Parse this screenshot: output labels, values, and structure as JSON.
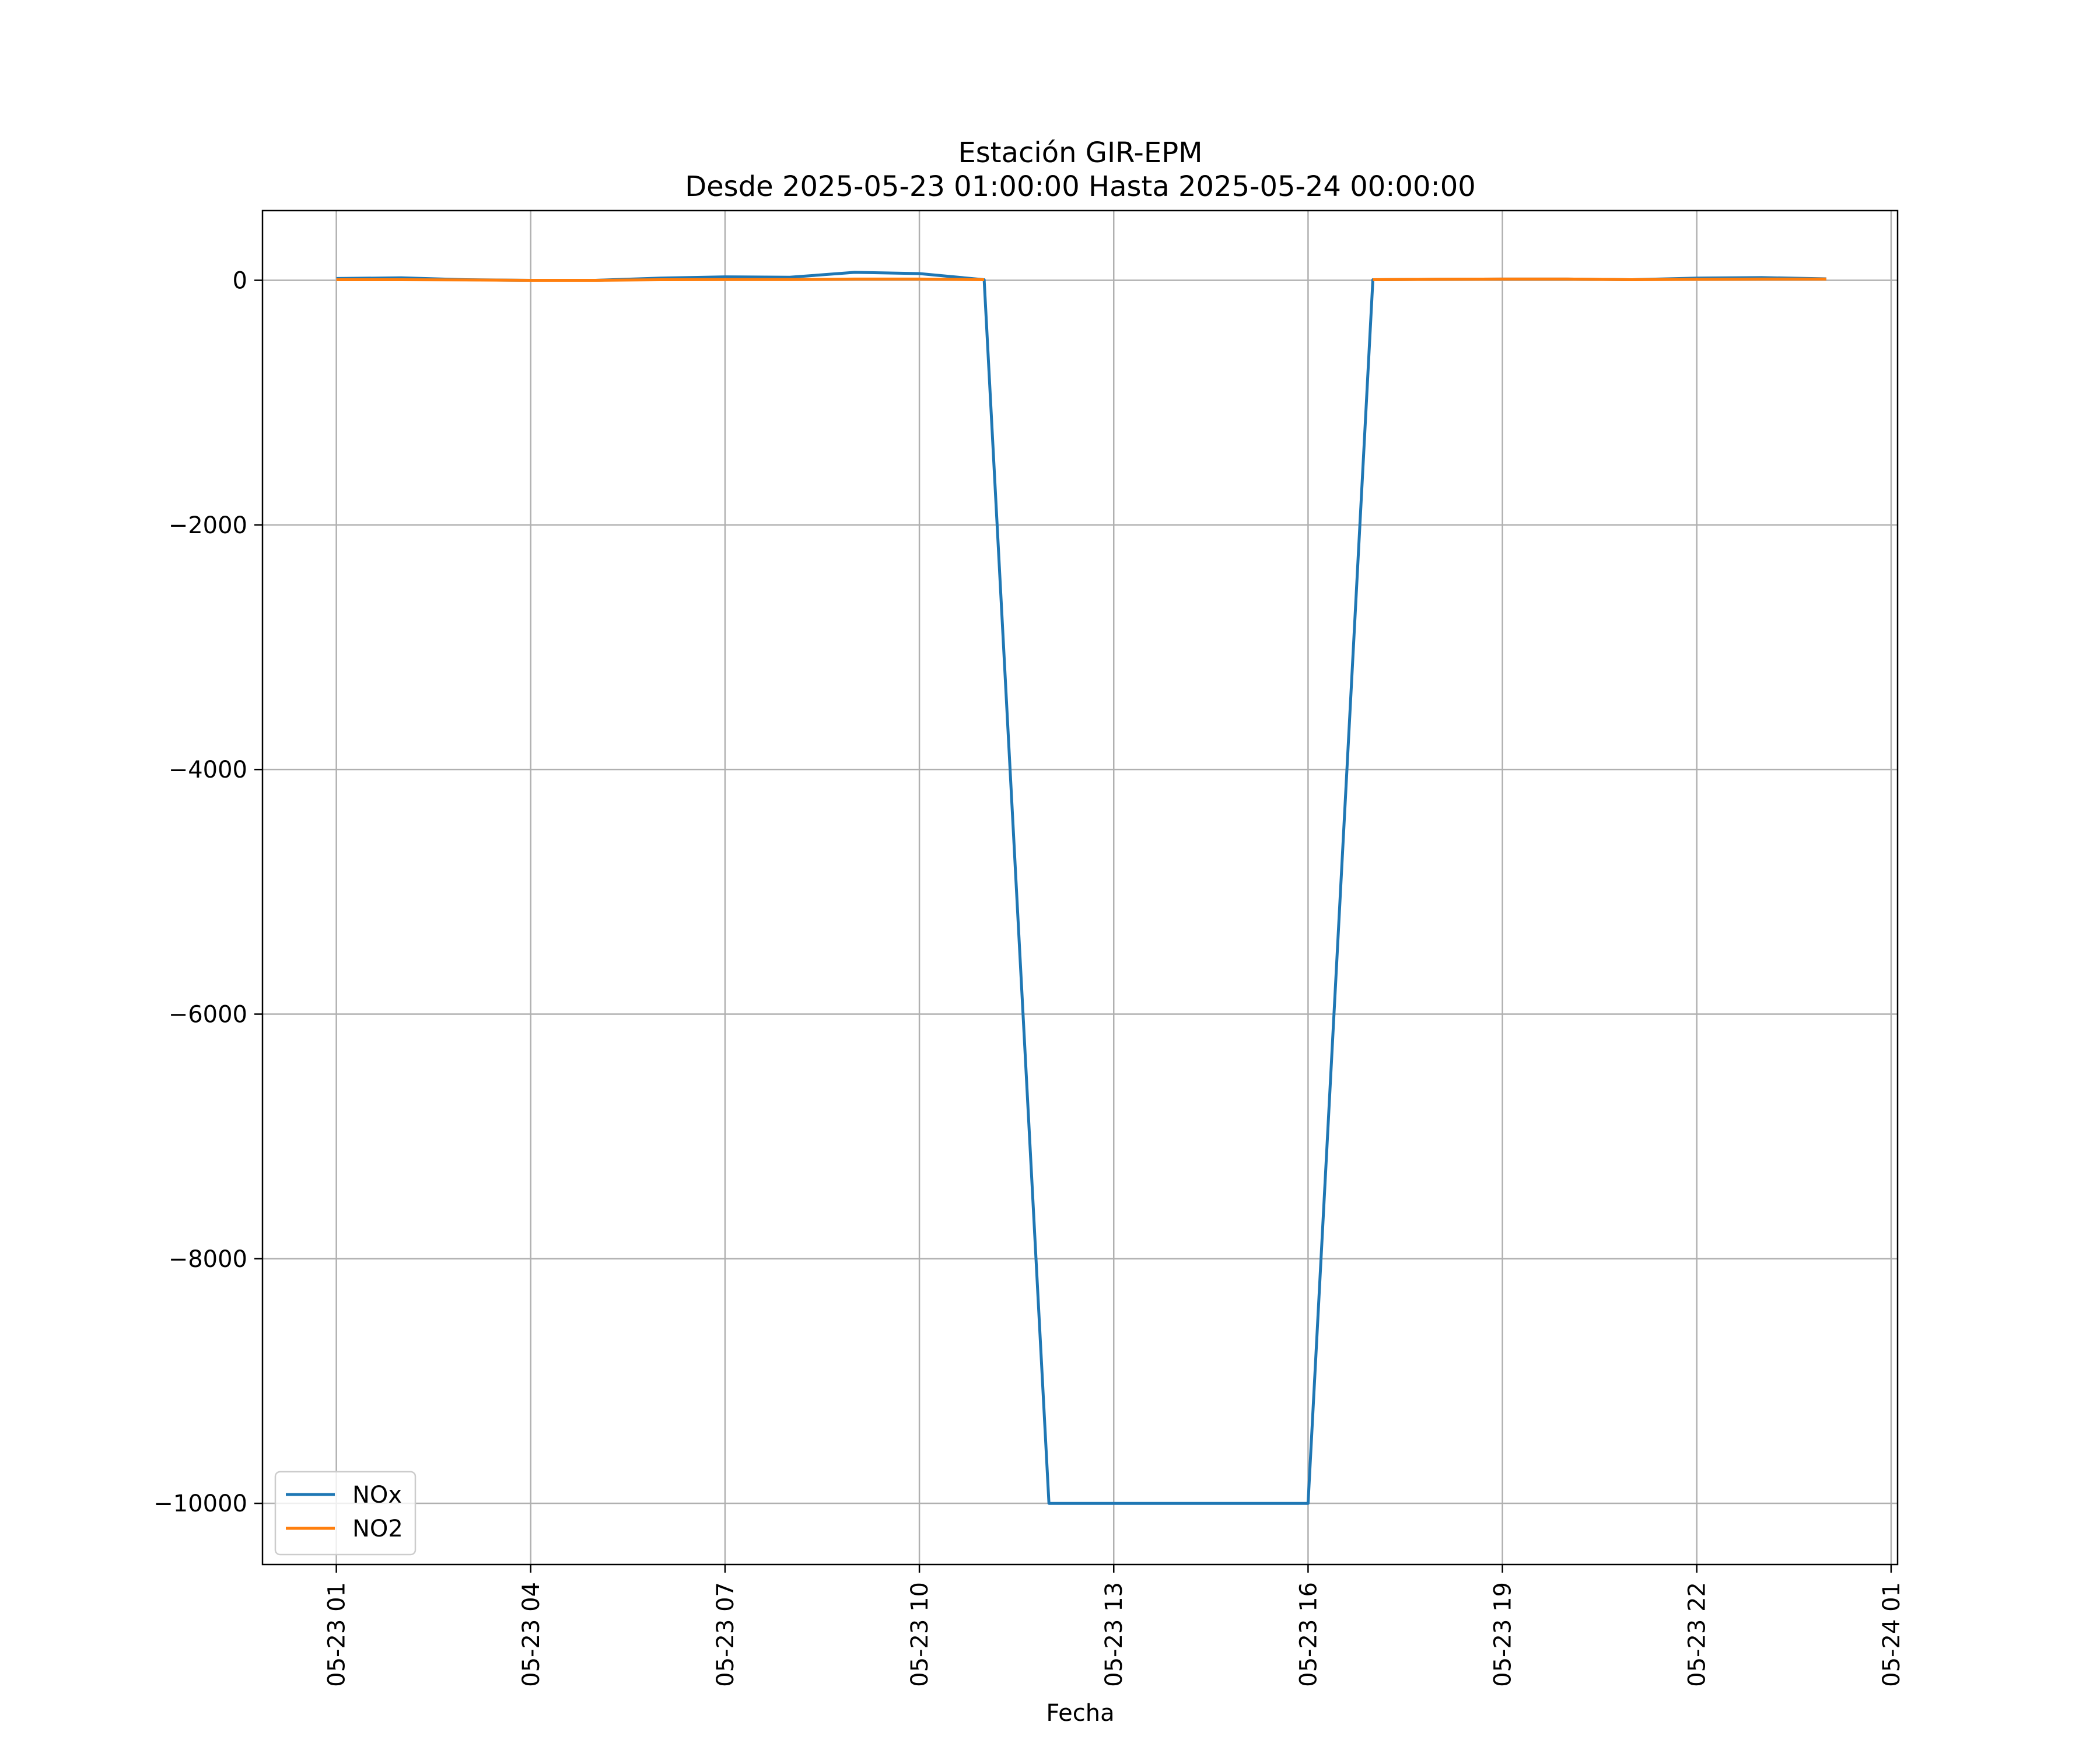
{
  "chart_data": {
    "type": "line",
    "title": "Estación GIR-EPM",
    "subtitle": "Desde 2025-05-23 01:00:00 Hasta 2025-05-24 00:00:00",
    "xlabel": "Fecha",
    "ylabel": "",
    "x": [
      "2025-05-23 01:00",
      "2025-05-23 02:00",
      "2025-05-23 03:00",
      "2025-05-23 04:00",
      "2025-05-23 05:00",
      "2025-05-23 06:00",
      "2025-05-23 07:00",
      "2025-05-23 08:00",
      "2025-05-23 09:00",
      "2025-05-23 10:00",
      "2025-05-23 11:00",
      "2025-05-23 12:00",
      "2025-05-23 13:00",
      "2025-05-23 14:00",
      "2025-05-23 15:00",
      "2025-05-23 16:00",
      "2025-05-23 17:00",
      "2025-05-23 18:00",
      "2025-05-23 19:00",
      "2025-05-23 20:00",
      "2025-05-23 21:00",
      "2025-05-23 22:00",
      "2025-05-23 23:00",
      "2025-05-24 00:00"
    ],
    "series": [
      {
        "name": "NOx",
        "color": "#1f77b4",
        "values": [
          15,
          20,
          5,
          0,
          0,
          18,
          28,
          25,
          65,
          55,
          5,
          -10000,
          -10000,
          -10000,
          -10000,
          -10000,
          5,
          8,
          10,
          10,
          5,
          18,
          22,
          12
        ]
      },
      {
        "name": "NO2",
        "color": "#ff7f0e",
        "values": [
          5,
          5,
          3,
          0,
          0,
          5,
          6,
          6,
          10,
          10,
          5,
          null,
          null,
          null,
          null,
          null,
          5,
          8,
          10,
          10,
          5,
          8,
          10,
          10
        ]
      }
    ],
    "xticks": [
      "05-23 01",
      "05-23 04",
      "05-23 07",
      "05-23 10",
      "05-23 13",
      "05-23 16",
      "05-23 19",
      "05-23 22",
      "05-24 01"
    ],
    "xtick_hours": [
      0,
      3,
      6,
      9,
      12,
      15,
      18,
      21,
      24
    ],
    "yticks": [
      0,
      -2000,
      -4000,
      -6000,
      -8000,
      -10000
    ],
    "ytick_labels": [
      "0",
      "−2000",
      "−4000",
      "−6000",
      "−8000",
      "−10000"
    ],
    "ylim": [
      -10500,
      570
    ],
    "xlim_hours": [
      -1.14,
      24.1
    ],
    "grid": true,
    "legend_position": "lower-left"
  }
}
